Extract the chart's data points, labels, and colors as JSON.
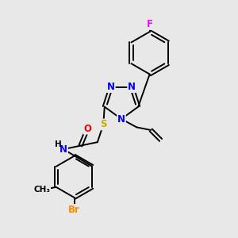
{
  "background_color": "#e8e8e8",
  "figsize": [
    3.0,
    3.0
  ],
  "dpi": 100,
  "atom_colors": {
    "N": "#0000FF",
    "S": "#CCAA00",
    "O": "#FF0000",
    "F": "#FF00FF",
    "Br": "#FF8C00",
    "C": "#000000",
    "H": "#000000"
  },
  "bond_color": "#000000",
  "bond_width": 1.4,
  "font_size_atoms": 8.5,
  "font_size_small": 7.5
}
